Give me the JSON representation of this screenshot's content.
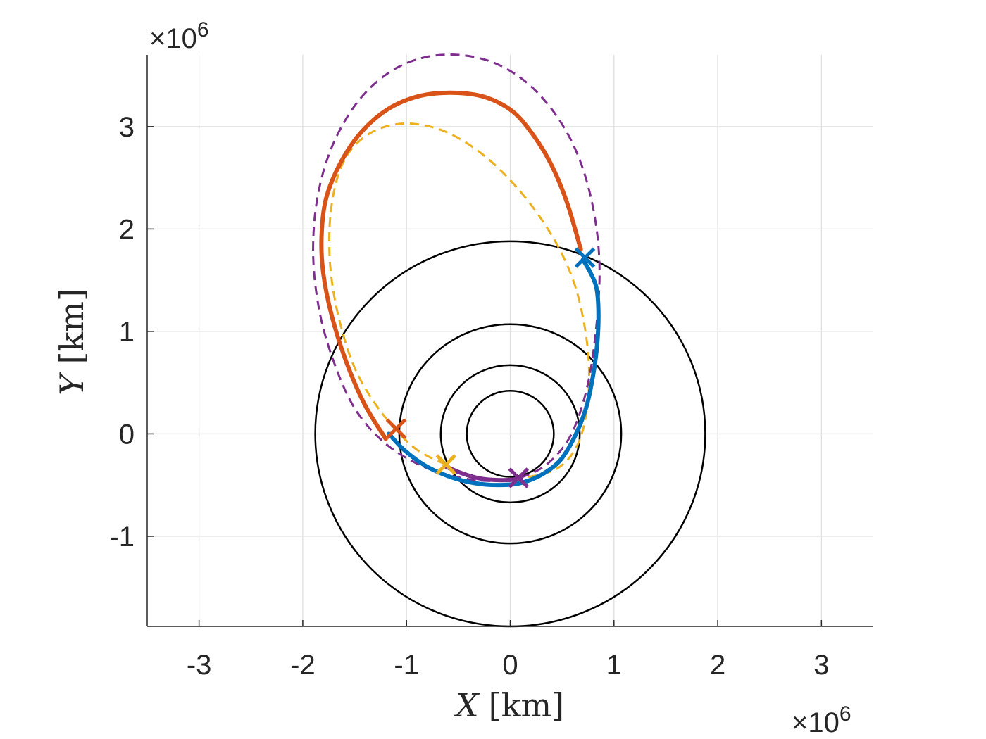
{
  "chart_data": {
    "type": "line",
    "title": "",
    "xlabel": {
      "var": "X",
      "unit": "[km]"
    },
    "ylabel": {
      "var": "Y",
      "unit": "[km]"
    },
    "xlim": [
      -3.5,
      3.5
    ],
    "ylim": [
      -1.88,
      3.7
    ],
    "scale_factor": {
      "times": "×10",
      "power": "6"
    },
    "xticks": [
      -3,
      -2,
      -1,
      0,
      1,
      2,
      3
    ],
    "yticks": [
      -1,
      0,
      1,
      2,
      3
    ],
    "xtick_labels": [
      "-3",
      "-2",
      "-1",
      "0",
      "1",
      "2",
      "3"
    ],
    "ytick_labels": [
      "-1",
      "0",
      "1",
      "2",
      "3"
    ],
    "grid": true,
    "colors": {
      "blue": "#0072BD",
      "orange": "#D95319",
      "yellow": "#EDB120",
      "purple": "#7E2F8E",
      "black": "#000000"
    },
    "circles": [
      {
        "name": "circle-r0.42",
        "cx": 0,
        "cy": 0,
        "r": 0.42
      },
      {
        "name": "circle-r0.67",
        "cx": 0,
        "cy": 0,
        "r": 0.67
      },
      {
        "name": "circle-r1.07",
        "cx": 0,
        "cy": 0,
        "r": 1.07
      },
      {
        "name": "circle-r1.88",
        "cx": 0,
        "cy": 0,
        "r": 1.88
      }
    ],
    "series": [
      {
        "name": "orange-transfer-arc",
        "color": "orange",
        "style": "solid",
        "width": 6,
        "x": [
          0.68,
          0.55,
          0.4,
          0.22,
          0.02,
          -0.25,
          -0.55,
          -0.87,
          -1.18,
          -1.45,
          -1.65,
          -1.78,
          -1.82,
          -1.8,
          -1.72,
          -1.58,
          -1.4,
          -1.2
        ],
        "y": [
          1.8,
          2.25,
          2.62,
          2.92,
          3.15,
          3.29,
          3.33,
          3.3,
          3.17,
          2.93,
          2.62,
          2.28,
          1.9,
          1.55,
          1.15,
          0.7,
          0.28,
          -0.05
        ]
      },
      {
        "name": "blue-departure-arc",
        "color": "blue",
        "style": "solid",
        "width": 6,
        "x": [
          -1.17,
          -1.02,
          -0.82,
          -0.58,
          -0.35,
          -0.12,
          0.1,
          0.3,
          0.48,
          0.62,
          0.73,
          0.8,
          0.84,
          0.85,
          0.83,
          0.77,
          0.7
        ],
        "y": [
          0.0,
          -0.16,
          -0.31,
          -0.42,
          -0.48,
          -0.5,
          -0.48,
          -0.4,
          -0.26,
          -0.03,
          0.25,
          0.58,
          0.9,
          1.2,
          1.43,
          1.58,
          1.7
        ]
      },
      {
        "name": "purple-short-arc",
        "color": "purple",
        "style": "solid",
        "width": 6,
        "x": [
          -0.62,
          -0.48,
          -0.32,
          -0.16,
          0.0,
          0.1
        ],
        "y": [
          -0.32,
          -0.38,
          -0.43,
          -0.45,
          -0.45,
          -0.43
        ]
      },
      {
        "name": "yellow-dashed-orbit",
        "color": "yellow",
        "style": "dashed",
        "width": 3,
        "x": [
          -0.62,
          -0.92,
          -1.22,
          -1.48,
          -1.64,
          -1.73,
          -1.74,
          -1.68,
          -1.56,
          -1.36,
          -1.12,
          -0.87,
          -0.6,
          -0.32,
          -0.05,
          0.22,
          0.45,
          0.62,
          0.72,
          0.76,
          0.74,
          0.68,
          0.58,
          0.45,
          0.28,
          0.1
        ],
        "y": [
          -0.3,
          -0.14,
          0.18,
          0.6,
          1.08,
          1.58,
          2.05,
          2.45,
          2.74,
          2.93,
          3.02,
          3.02,
          2.94,
          2.77,
          2.53,
          2.21,
          1.85,
          1.46,
          1.03,
          0.62,
          0.25,
          -0.03,
          -0.22,
          -0.34,
          -0.4,
          -0.43
        ]
      },
      {
        "name": "purple-dashed-orbit",
        "color": "purple",
        "style": "dashed",
        "width": 3,
        "x": [
          0.1,
          0.35,
          0.58,
          0.74,
          0.83,
          0.86,
          0.8,
          0.66,
          0.45,
          0.17,
          -0.15,
          -0.5,
          -0.85,
          -1.18,
          -1.48,
          -1.72,
          -1.86,
          -1.9,
          -1.84,
          -1.7,
          -1.5,
          -1.22,
          -0.88,
          -0.52,
          -0.2,
          0.1
        ],
        "y": [
          -0.43,
          -0.3,
          -0.02,
          0.45,
          1.05,
          1.65,
          2.2,
          2.7,
          3.1,
          3.42,
          3.62,
          3.7,
          3.67,
          3.52,
          3.23,
          2.8,
          2.3,
          1.75,
          1.2,
          0.7,
          0.25,
          -0.08,
          -0.3,
          -0.42,
          -0.46,
          -0.43
        ]
      }
    ],
    "markers": [
      {
        "name": "orange-x-marker",
        "color": "orange",
        "x": -1.1,
        "y": 0.05
      },
      {
        "name": "yellow-x-marker",
        "color": "yellow",
        "x": -0.62,
        "y": -0.3
      },
      {
        "name": "purple-x-marker",
        "color": "purple",
        "x": 0.08,
        "y": -0.43
      },
      {
        "name": "blue-x-marker",
        "color": "blue",
        "x": 0.72,
        "y": 1.72
      }
    ]
  }
}
